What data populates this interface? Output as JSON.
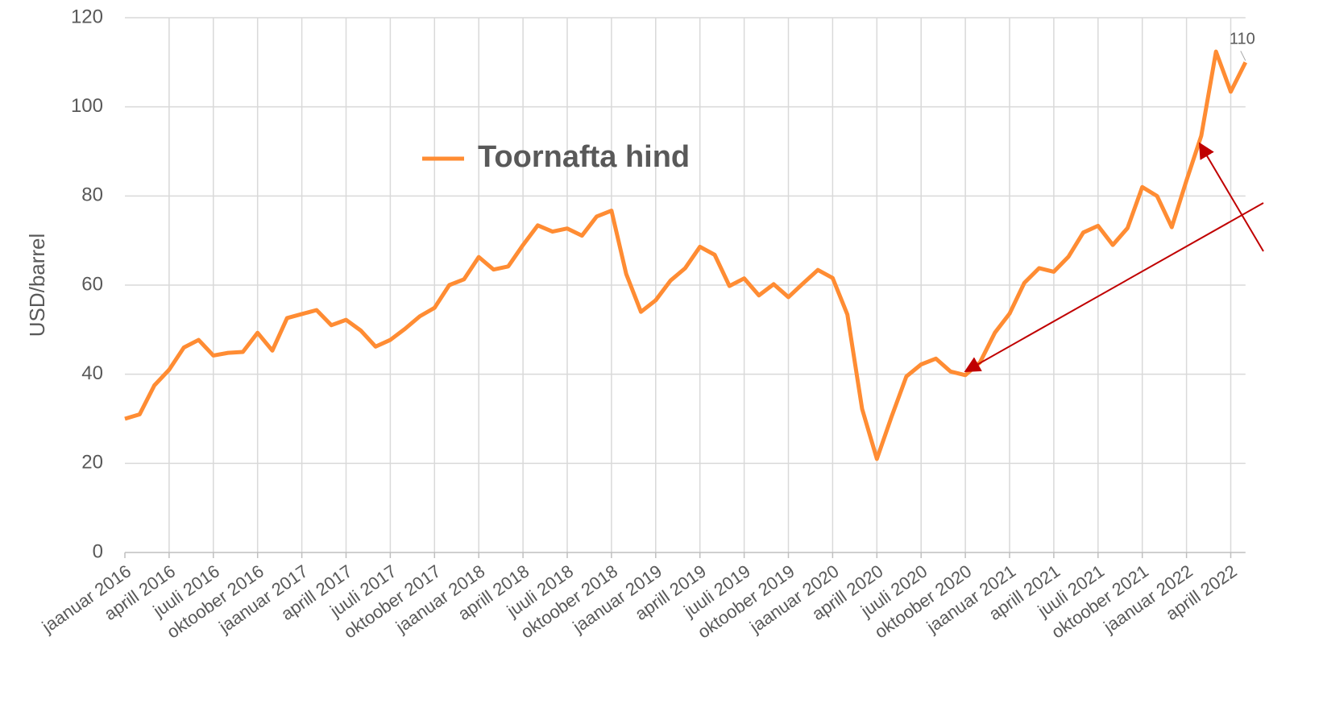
{
  "chart_data": {
    "type": "line",
    "legend": "top-center",
    "y_label": "USD/barrel",
    "categories": [
      "jaanuar 2016",
      null,
      null,
      "aprill 2016",
      null,
      null,
      "juuli 2016",
      null,
      null,
      "oktoober 2016",
      null,
      null,
      "jaanuar 2017",
      null,
      null,
      "aprill 2017",
      null,
      null,
      "juuli 2017",
      null,
      null,
      "oktoober 2017",
      null,
      null,
      "jaanuar 2018",
      null,
      null,
      "aprill 2018",
      null,
      null,
      "juuli 2018",
      null,
      null,
      "oktoober 2018",
      null,
      null,
      "jaanuar 2019",
      null,
      null,
      "aprill 2019",
      null,
      null,
      "juuli 2019",
      null,
      null,
      "oktoober 2019",
      null,
      null,
      "jaanuar 2020",
      null,
      null,
      "aprill 2020",
      null,
      null,
      "juuli 2020",
      null,
      null,
      "oktoober 2020",
      null,
      null,
      "jaanuar 2021",
      null,
      null,
      "aprill 2021",
      null,
      null,
      "juuli 2021",
      null,
      null,
      "oktoober 2021",
      null,
      null,
      "jaanuar 2022",
      null,
      null,
      "aprill 2022",
      null
    ],
    "series": [
      {
        "name": "Toornafta hind",
        "color": "#ff8c33",
        "values": [
          30,
          31,
          37.5,
          41,
          46,
          47.7,
          44.2,
          44.8,
          45,
          49.3,
          45.3,
          52.6,
          53.5,
          54.4,
          51,
          52.2,
          49.8,
          46.2,
          47.7,
          50.2,
          53,
          54.9,
          60,
          61.3,
          66.3,
          63.5,
          64.2,
          69,
          73.4,
          72,
          72.7,
          71.1,
          75.4,
          76.7,
          62.5,
          54,
          56.6,
          61,
          63.8,
          68.6,
          66.8,
          59.8,
          61.5,
          57.7,
          60.2,
          57.3,
          60.4,
          63.4,
          61.6,
          53.4,
          32.2,
          21,
          30.5,
          39.5,
          42.2,
          43.5,
          40.6,
          39.8,
          42.7,
          49.3,
          53.6,
          60.5,
          63.8,
          63,
          66.4,
          71.8,
          73.3,
          69,
          72.8,
          82,
          80,
          73,
          83.5,
          93.5,
          112.4,
          103.4,
          110
        ]
      }
    ],
    "ylim": [
      0,
      120
    ],
    "yticks": [
      0,
      20,
      40,
      60,
      80,
      100,
      120
    ],
    "grid": true
  }
}
